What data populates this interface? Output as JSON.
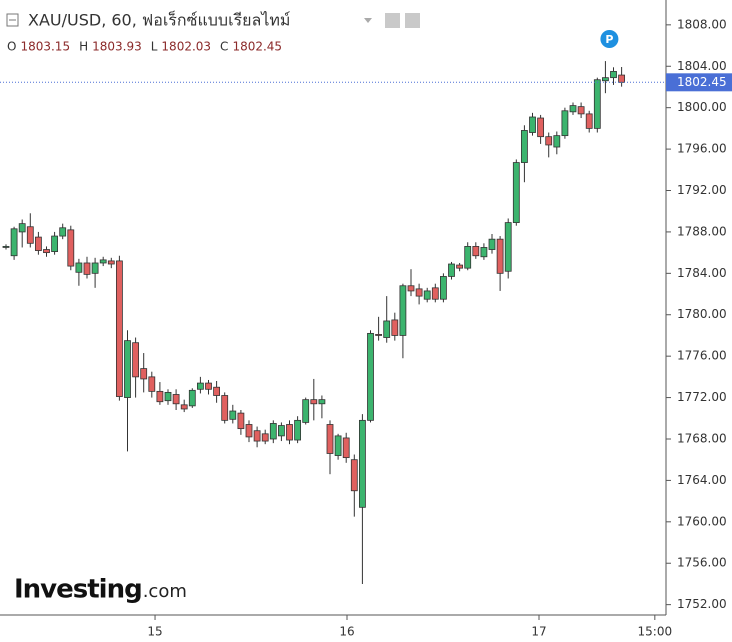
{
  "chart_data": {
    "type": "candlestick",
    "title": "XAU/USD, 60, ฟอเร็กซ์แบบเรียลไทม์",
    "legend_labels": [
      "O",
      "H",
      "L",
      "C"
    ],
    "up_color": "#3cb46e",
    "down_color": "#e0605f",
    "x": [
      0,
      1,
      2,
      3,
      4,
      5,
      6,
      7,
      8,
      9,
      10,
      11,
      12,
      13,
      14,
      15,
      16,
      17,
      18,
      19,
      20,
      21,
      22,
      23,
      24,
      25,
      26,
      27,
      28,
      29,
      30,
      31,
      32,
      33,
      34,
      35,
      36,
      37,
      38,
      39,
      40,
      41,
      42,
      43,
      44,
      45,
      46,
      47,
      48,
      49,
      50,
      51,
      52,
      53,
      54,
      55,
      56,
      57,
      58,
      59,
      60,
      61,
      62,
      63,
      64,
      65,
      66,
      67,
      68,
      69,
      70,
      71,
      72,
      73,
      74,
      75,
      76
    ],
    "open": [
      1786.5,
      1785.7,
      1788,
      1788.5,
      1787.5,
      1786.3,
      1786.1,
      1787.6,
      1788.2,
      1784.1,
      1785,
      1784,
      1785,
      1785.2,
      1785.2,
      1772,
      1777.3,
      1774.8,
      1774,
      1772.6,
      1771.7,
      1772.3,
      1771.3,
      1771.2,
      1772.8,
      1773.4,
      1773,
      1772.2,
      1769.9,
      1770.5,
      1769.4,
      1768.8,
      1768.5,
      1768,
      1768.3,
      1769.4,
      1767.9,
      1769.6,
      1771.8,
      1771.4,
      1769.4,
      1766.4,
      1768.1,
      1766,
      1761.4,
      1769.8,
      1778.1,
      1777.8,
      1779.5,
      1778,
      1782.8,
      1782.5,
      1781.5,
      1782.6,
      1781.5,
      1783.7,
      1784.8,
      1784.5,
      1786.6,
      1785.6,
      1786.3,
      1787.3,
      1784.2,
      1788.9,
      1794.7,
      1797.6,
      1799,
      1797.2,
      1796.2,
      1797.3,
      1799.6,
      1800.1,
      1799.4,
      1798,
      1802.6,
      1802.9,
      1803.15
    ],
    "high": [
      1786.8,
      1788.5,
      1789.2,
      1789.8,
      1788,
      1786.6,
      1788,
      1788.8,
      1788.6,
      1785.4,
      1785.6,
      1785.5,
      1785.6,
      1785.5,
      1785.7,
      1778.5,
      1777.8,
      1776.3,
      1774.5,
      1773.5,
      1772.8,
      1772.8,
      1771.8,
      1772.9,
      1774,
      1773.7,
      1773.6,
      1772.5,
      1771.3,
      1770.8,
      1769.8,
      1769.2,
      1768.9,
      1769.8,
      1769.6,
      1769.8,
      1770.2,
      1772,
      1773.8,
      1772.2,
      1769.8,
      1768.5,
      1768.6,
      1766.5,
      1770.4,
      1778.5,
      1779.8,
      1781.8,
      1780.2,
      1783,
      1784.4,
      1783,
      1782.6,
      1783,
      1784,
      1785.1,
      1785,
      1787,
      1787,
      1786.9,
      1787.8,
      1787.6,
      1789.3,
      1795,
      1798.3,
      1799.5,
      1799.3,
      1797.6,
      1797.7,
      1800,
      1800.5,
      1800.5,
      1799.7,
      1802.9,
      1804.5,
      1803.9,
      1803.93
    ],
    "low": [
      1786.3,
      1785.3,
      1786.5,
      1786.5,
      1785.8,
      1785.6,
      1785.8,
      1787.3,
      1784.3,
      1782.8,
      1783.5,
      1782.6,
      1784.7,
      1784.5,
      1771.7,
      1766.8,
      1772,
      1772.5,
      1772,
      1771.3,
      1771.3,
      1770.8,
      1770.6,
      1771,
      1772.4,
      1772.3,
      1771.5,
      1769.5,
      1769.5,
      1768.4,
      1767.7,
      1767.2,
      1767.5,
      1767.6,
      1767.8,
      1767.5,
      1767.6,
      1769.4,
      1769.8,
      1770,
      1764.6,
      1766,
      1765.7,
      1760.5,
      1754,
      1769.6,
      1777.5,
      1777.3,
      1777.5,
      1775.8,
      1781.8,
      1781,
      1781.2,
      1781.2,
      1781.2,
      1783.4,
      1784.2,
      1784.3,
      1785.4,
      1785.3,
      1785.9,
      1782.3,
      1783.5,
      1788.6,
      1792.8,
      1797.3,
      1796.5,
      1795.2,
      1795.5,
      1797,
      1799.3,
      1799,
      1797.6,
      1797.6,
      1801.4,
      1802.2,
      1802.03
    ],
    "close": [
      1786.6,
      1788.3,
      1788.8,
      1786.9,
      1786.2,
      1786,
      1787.6,
      1788.4,
      1784.7,
      1785,
      1783.9,
      1785,
      1785.3,
      1784.9,
      1772.1,
      1777.5,
      1774,
      1773.8,
      1772.6,
      1771.6,
      1772.5,
      1771.4,
      1770.9,
      1772.7,
      1773.4,
      1772.8,
      1772.2,
      1769.8,
      1770.7,
      1769,
      1768.2,
      1767.8,
      1767.8,
      1769.5,
      1769.3,
      1767.9,
      1769.8,
      1771.8,
      1771.4,
      1771.8,
      1766.6,
      1768.3,
      1766.2,
      1763,
      1769.8,
      1778.2,
      1778,
      1779.4,
      1778,
      1782.8,
      1782.3,
      1781.8,
      1782.3,
      1781.5,
      1783.7,
      1784.9,
      1784.5,
      1786.6,
      1785.7,
      1786.5,
      1787.3,
      1784,
      1788.9,
      1794.7,
      1797.8,
      1799.1,
      1797.2,
      1796.4,
      1797.3,
      1799.7,
      1800.2,
      1799.4,
      1798,
      1802.7,
      1802.9,
      1803.5,
      1802.45
    ],
    "markers": [
      {
        "x": 74,
        "label": "P"
      }
    ],
    "xlim": [
      -0.74,
      81.48
    ],
    "ylim": [
      1751,
      1810.4
    ],
    "xticks": [
      {
        "value": 18.4,
        "label": "15"
      },
      {
        "value": 42.1,
        "label": "16"
      },
      {
        "value": 65.8,
        "label": "17"
      },
      {
        "value": 80.1,
        "label": "15:00"
      }
    ],
    "yticks": [
      {
        "value": 1752,
        "label": "1752.00"
      },
      {
        "value": 1756,
        "label": "1756.00"
      },
      {
        "value": 1760,
        "label": "1760.00"
      },
      {
        "value": 1764,
        "label": "1764.00"
      },
      {
        "value": 1768,
        "label": "1768.00"
      },
      {
        "value": 1772,
        "label": "1772.00"
      },
      {
        "value": 1776,
        "label": "1776.00"
      },
      {
        "value": 1780,
        "label": "1780.00"
      },
      {
        "value": 1784,
        "label": "1784.00"
      },
      {
        "value": 1788,
        "label": "1788.00"
      },
      {
        "value": 1792,
        "label": "1792.00"
      },
      {
        "value": 1796,
        "label": "1796.00"
      },
      {
        "value": 1800,
        "label": "1800.00"
      },
      {
        "value": 1804,
        "label": "1804.00"
      },
      {
        "value": 1808,
        "label": "1808.00"
      }
    ],
    "watermark": {
      "brand": "Investing",
      "suffix": ".com"
    }
  }
}
